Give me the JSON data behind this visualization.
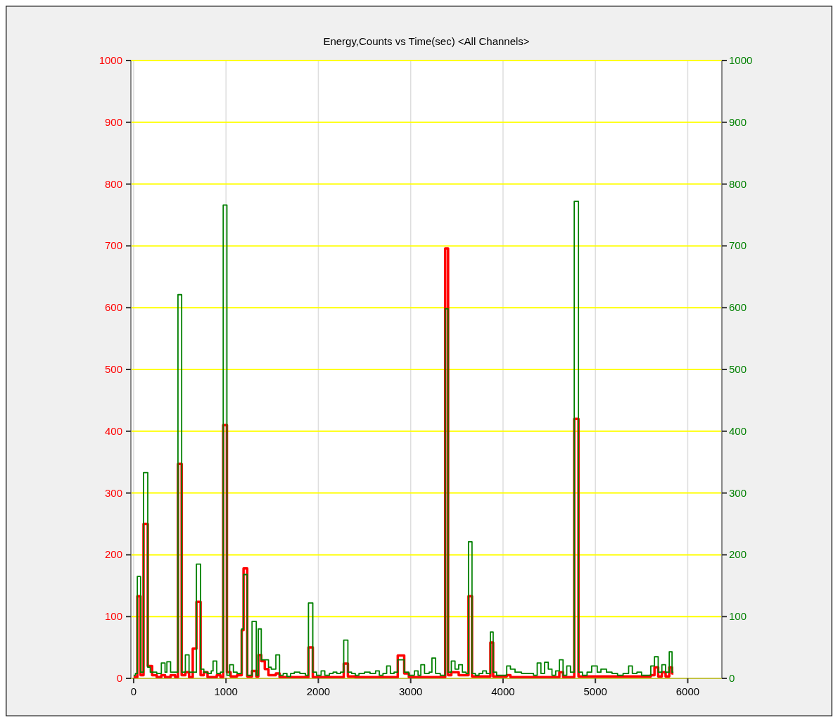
{
  "chart_data": {
    "type": "step",
    "title": "Energy,Counts vs Time(sec) <All Channels>",
    "xlim": [
      -30,
      6370
    ],
    "xticks": [
      0,
      1000,
      2000,
      3000,
      4000,
      5000,
      6000
    ],
    "ylim": [
      0,
      1000
    ],
    "yticks": [
      0,
      100,
      200,
      300,
      400,
      500,
      600,
      700,
      800,
      900,
      1000
    ],
    "y2lim": [
      0,
      1000
    ],
    "y2ticks": [
      0,
      100,
      200,
      300,
      400,
      500,
      600,
      700,
      800,
      900,
      1000
    ],
    "grid": true,
    "series": [
      {
        "color": "#ff0000",
        "x": [
          0,
          40,
          75,
          107,
          153,
          200,
          250,
          300,
          340,
          400,
          450,
          480,
          520,
          560,
          600,
          640,
          680,
          725,
          760,
          800,
          900,
          940,
          970,
          1010,
          1050,
          1120,
          1170,
          1190,
          1230,
          1282,
          1328,
          1350,
          1382,
          1420,
          1460,
          1540,
          1580,
          1893,
          1940,
          2275,
          2320,
          2400,
          2860,
          2930,
          2980,
          3374,
          3405,
          3440,
          3520,
          3626,
          3664,
          3863,
          3893,
          4040,
          4080,
          4610,
          4650,
          4771,
          4817,
          5600,
          5640,
          5680,
          5720,
          5760,
          5800,
          5830,
          5845
        ],
        "values": [
          2,
          133,
          5,
          250,
          20,
          5,
          2,
          5,
          2,
          5,
          2,
          347,
          5,
          10,
          2,
          48,
          124,
          5,
          10,
          2,
          5,
          2,
          410,
          10,
          3,
          5,
          78,
          178,
          3,
          12,
          3,
          38,
          28,
          15,
          5,
          8,
          2,
          50,
          2,
          24,
          3,
          2,
          37,
          8,
          2,
          696,
          5,
          10,
          5,
          133,
          3,
          58,
          3,
          5,
          2,
          10,
          2,
          420,
          3,
          5,
          18,
          3,
          10,
          3,
          18,
          8,
          8
        ]
      },
      {
        "color": "#008000",
        "axis": "y2",
        "x": [
          0,
          20,
          40,
          75,
          107,
          153,
          180,
          250,
          300,
          340,
          360,
          400,
          480,
          520,
          560,
          600,
          680,
          725,
          760,
          800,
          840,
          860,
          900,
          940,
          970,
          1010,
          1040,
          1080,
          1120,
          1170,
          1190,
          1230,
          1282,
          1328,
          1350,
          1382,
          1460,
          1490,
          1540,
          1580,
          1620,
          1660,
          1700,
          1740,
          1800,
          1860,
          1893,
          1940,
          1980,
          2030,
          2070,
          2120,
          2160,
          2200,
          2240,
          2275,
          2320,
          2360,
          2400,
          2440,
          2500,
          2560,
          2620,
          2660,
          2700,
          2740,
          2780,
          2820,
          2860,
          2930,
          2980,
          3040,
          3080,
          3110,
          3150,
          3200,
          3230,
          3270,
          3320,
          3374,
          3405,
          3440,
          3480,
          3520,
          3560,
          3600,
          3626,
          3664,
          3700,
          3740,
          3780,
          3820,
          3863,
          3893,
          3930,
          4040,
          4080,
          4130,
          4200,
          4270,
          4330,
          4370,
          4410,
          4450,
          4490,
          4530,
          4570,
          4610,
          4650,
          4690,
          4730,
          4771,
          4817,
          4860,
          4910,
          4960,
          5020,
          5060,
          5120,
          5180,
          5240,
          5300,
          5360,
          5400,
          5450,
          5500,
          5600,
          5640,
          5680,
          5720,
          5760,
          5800,
          5830,
          5845
        ],
        "values": [
          5,
          8,
          165,
          10,
          333,
          18,
          10,
          8,
          25,
          10,
          27,
          10,
          621,
          10,
          38,
          10,
          185,
          15,
          10,
          8,
          12,
          28,
          8,
          10,
          766,
          5,
          22,
          10,
          8,
          80,
          168,
          5,
          92,
          5,
          80,
          30,
          18,
          15,
          38,
          5,
          8,
          3,
          8,
          10,
          8,
          5,
          122,
          10,
          5,
          12,
          5,
          8,
          10,
          8,
          10,
          62,
          10,
          8,
          5,
          8,
          10,
          8,
          12,
          5,
          8,
          20,
          8,
          10,
          30,
          10,
          5,
          12,
          5,
          22,
          8,
          10,
          33,
          8,
          5,
          598,
          10,
          28,
          15,
          22,
          10,
          8,
          221,
          8,
          5,
          8,
          12,
          8,
          75,
          10,
          5,
          20,
          15,
          10,
          8,
          8,
          5,
          25,
          8,
          26,
          15,
          5,
          12,
          30,
          5,
          20,
          10,
          772,
          10,
          5,
          10,
          20,
          10,
          15,
          10,
          8,
          5,
          8,
          20,
          8,
          10,
          5,
          20,
          35,
          10,
          22,
          10,
          43,
          10,
          10
        ]
      }
    ]
  }
}
